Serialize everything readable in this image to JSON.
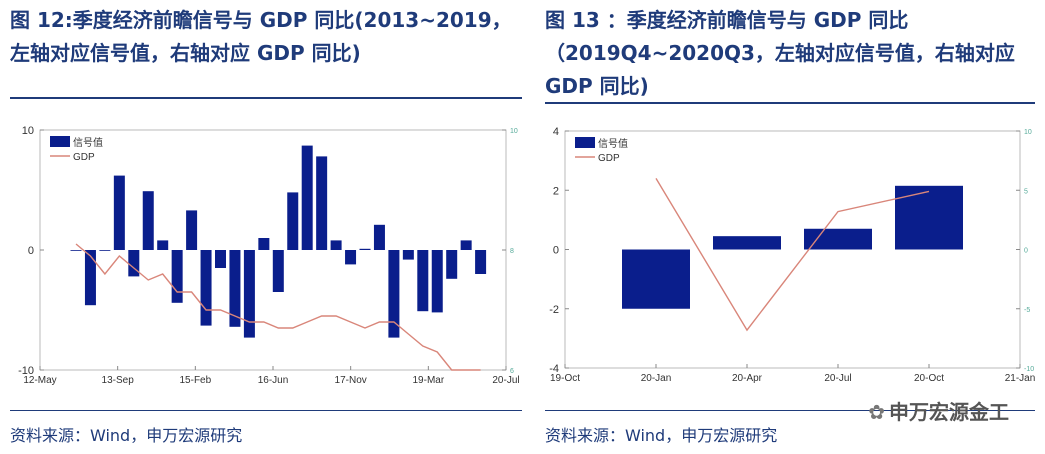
{
  "left": {
    "title_line1": "图 12:季度经济前瞻信号与 GDP 同比(2013~2019，",
    "title_line2": "左轴对应信号值，右轴对应 GDP 同比)",
    "source": "资料来源：Wind，申万宏源研究"
  },
  "right": {
    "title_line1": "图   13 ：季度经济前瞻信号与   GDP   同比",
    "title_line2": "（2019Q4~2020Q3，左轴对应信号值，右轴对应",
    "title_line3": "GDP 同比)",
    "source": "资料来源：Wind，申万宏源研究"
  },
  "watermark": "申万宏源金工",
  "colors": {
    "bar": "#0A1E8C",
    "line": "#D9867A",
    "title": "#1F3B7A"
  },
  "chart_data": [
    {
      "type": "bar+line",
      "legend": [
        "信号值",
        "GDP"
      ],
      "legend_position": "top-left",
      "x_ticks": [
        "12-May",
        "13-Sep",
        "15-Feb",
        "16-Jun",
        "17-Nov",
        "19-Mar",
        "20-Jul"
      ],
      "y_left": {
        "lim": [
          -10,
          10
        ],
        "ticks": [
          "10",
          "0",
          "-10"
        ]
      },
      "y_right": {
        "lim": [
          6,
          10
        ],
        "ticks": [
          "10",
          "8",
          "6"
        ]
      },
      "series": [
        {
          "name": "信号值",
          "kind": "bar",
          "x": [
            "2012Q4",
            "2013Q1",
            "2013Q2",
            "2013Q3",
            "2013Q4",
            "2014Q1",
            "2014Q2",
            "2014Q3",
            "2014Q4",
            "2015Q1",
            "2015Q2",
            "2015Q3",
            "2015Q4",
            "2016Q1",
            "2016Q2",
            "2016Q3",
            "2016Q4",
            "2017Q1",
            "2017Q2",
            "2017Q3",
            "2017Q4",
            "2018Q1",
            "2018Q2",
            "2018Q3",
            "2018Q4",
            "2019Q1",
            "2019Q2",
            "2019Q3",
            "2019Q4"
          ],
          "values": [
            0,
            -4.6,
            0,
            6.2,
            -2.2,
            4.9,
            0.8,
            -4.4,
            3.3,
            -6.3,
            -1.5,
            -6.4,
            -7.3,
            1.0,
            -3.5,
            4.8,
            8.7,
            7.8,
            0.8,
            -1.2,
            0.1,
            2.1,
            -7.3,
            -0.8,
            -5.1,
            -5.2,
            -2.4,
            0.8,
            -2.0
          ]
        },
        {
          "name": "GDP",
          "kind": "line",
          "x": [
            "2012Q4",
            "2013Q1",
            "2013Q2",
            "2013Q3",
            "2013Q4",
            "2014Q1",
            "2014Q2",
            "2014Q3",
            "2014Q4",
            "2015Q1",
            "2015Q2",
            "2015Q3",
            "2015Q4",
            "2016Q1",
            "2016Q2",
            "2016Q3",
            "2016Q4",
            "2017Q1",
            "2017Q2",
            "2017Q3",
            "2017Q4",
            "2018Q1",
            "2018Q2",
            "2018Q3",
            "2018Q4",
            "2019Q1",
            "2019Q2",
            "2019Q3",
            "2019Q4"
          ],
          "values": [
            8.1,
            7.9,
            7.6,
            7.9,
            7.7,
            7.5,
            7.6,
            7.3,
            7.3,
            7.0,
            7.0,
            6.9,
            6.8,
            6.8,
            6.7,
            6.7,
            6.8,
            6.9,
            6.9,
            6.8,
            6.7,
            6.8,
            6.8,
            6.6,
            6.4,
            6.3,
            6.0,
            6.0,
            6.0
          ]
        }
      ]
    },
    {
      "type": "bar+line",
      "legend": [
        "信号值",
        "GDP"
      ],
      "legend_position": "top-left",
      "x_ticks": [
        "19-Oct",
        "20-Jan",
        "20-Apr",
        "20-Jul",
        "20-Oct",
        "21-Jan"
      ],
      "y_left": {
        "lim": [
          -4,
          4
        ],
        "ticks": [
          "4",
          "2",
          "0",
          "-2",
          "-4"
        ]
      },
      "y_right": {
        "lim": [
          -10,
          10
        ],
        "ticks": [
          "10",
          "5",
          "0",
          "-5",
          "-10"
        ]
      },
      "series": [
        {
          "name": "信号值",
          "kind": "bar",
          "x": [
            "2019Q4",
            "2020Q1",
            "2020Q2",
            "2020Q3"
          ],
          "values": [
            -2.0,
            0.45,
            0.7,
            2.15
          ]
        },
        {
          "name": "GDP",
          "kind": "line",
          "x": [
            "2019Q4",
            "2020Q1",
            "2020Q2",
            "2020Q3"
          ],
          "values": [
            6.0,
            -6.8,
            3.2,
            4.9
          ]
        }
      ]
    }
  ]
}
